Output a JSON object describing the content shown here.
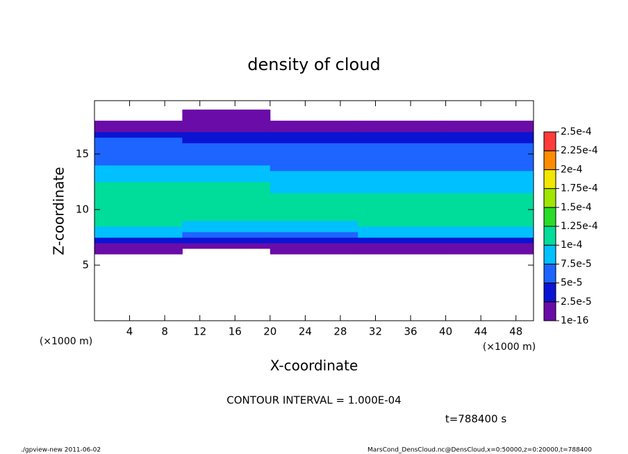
{
  "chart_data": {
    "type": "heatmap",
    "title": "density of cloud",
    "xlabel": "X-coordinate",
    "ylabel": "Z-coordinate",
    "x_unit_left": "(×1000 m)",
    "x_unit_right": "(×1000 m)",
    "contour_note": "CONTOUR INTERVAL = 1.000E-04",
    "time_note": "t=788400 s",
    "footer_left": "./gpview-new   2011-06-02",
    "footer_right": "MarsCond_DensCloud.nc@DensCloud,x=0:50000,z=0:20000,t=788400",
    "xlim": [
      0,
      50
    ],
    "ylim": [
      0,
      19.8
    ],
    "xticks": [
      4,
      8,
      12,
      16,
      20,
      24,
      28,
      32,
      36,
      40,
      44,
      48
    ],
    "yticks": [
      5,
      10,
      15
    ],
    "x_bins": [
      0,
      10,
      20,
      30,
      40,
      50
    ],
    "z_bins": [
      6,
      6.5,
      7,
      7.5,
      8,
      8.5,
      9,
      9.5,
      10,
      10.5,
      11,
      11.5,
      12,
      12.5,
      13,
      13.5,
      14,
      14.5,
      15,
      15.5,
      16,
      16.5,
      17,
      17.5,
      18,
      18.5,
      19
    ],
    "values": [
      [
        1e-05,
        2e-05,
        4e-05,
        8e-05,
        9e-05,
        0.000105,
        0.000115,
        0.00012,
        0.00012,
        0.000115,
        0.00011,
        0.000105,
        0.0001,
        9e-05,
        8e-05,
        7.5e-05,
        7e-05,
        6.5e-05,
        6e-05,
        5.5e-05,
        5e-05,
        3e-05,
        1e-05,
        1e-05,
        0,
        0
      ],
      [
        0,
        1e-05,
        3e-05,
        7e-05,
        8.5e-05,
        9.5e-05,
        0.000105,
        0.00011,
        0.000115,
        0.000115,
        0.00011,
        0.000105,
        0.000102,
        9e-05,
        8e-05,
        7.5e-05,
        7e-05,
        6.5e-05,
        6e-05,
        5.5e-05,
        4.5e-05,
        3e-05,
        2e-05,
        1e-05,
        1e-05,
        1e-05
      ],
      [
        1e-05,
        1e-05,
        3e-05,
        6.5e-05,
        8e-05,
        9e-05,
        0.000102,
        0.00011,
        0.00011,
        0.000105,
        0.000102,
        9.5e-05,
        9e-05,
        8e-05,
        7.5e-05,
        7e-05,
        6.5e-05,
        6e-05,
        5.5e-05,
        5e-05,
        4e-05,
        3e-05,
        1e-05,
        1e-05,
        0,
        0
      ],
      [
        1e-05,
        1e-05,
        4e-05,
        7.5e-05,
        9e-05,
        0.000102,
        0.000108,
        0.000112,
        0.00011,
        0.000105,
        0.000102,
        9e-05,
        8.5e-05,
        8e-05,
        7.5e-05,
        7e-05,
        6.5e-05,
        6e-05,
        5.5e-05,
        5e-05,
        4e-05,
        3e-05,
        1e-05,
        1e-05,
        0,
        0
      ],
      [
        1e-05,
        2e-05,
        4e-05,
        8e-05,
        9.5e-05,
        0.000105,
        0.00011,
        0.000112,
        0.00011,
        0.000105,
        0.000102,
        9e-05,
        8.5e-05,
        8e-05,
        7.5e-05,
        7e-05,
        6.5e-05,
        6e-05,
        5.5e-05,
        5e-05,
        4e-05,
        3e-05,
        1e-05,
        1e-05,
        0,
        0
      ]
    ],
    "levels": [
      {
        "value": 1e-16,
        "label": "1e-16"
      },
      {
        "value": 2.5e-05,
        "label": "2.5e-5"
      },
      {
        "value": 5e-05,
        "label": "5e-5"
      },
      {
        "value": 7.5e-05,
        "label": "7.5e-5"
      },
      {
        "value": 0.0001,
        "label": "1e-4"
      },
      {
        "value": 0.000125,
        "label": "1.25e-4"
      },
      {
        "value": 0.00015,
        "label": "1.5e-4"
      },
      {
        "value": 0.000175,
        "label": "1.75e-4"
      },
      {
        "value": 0.0002,
        "label": "2e-4"
      },
      {
        "value": 0.000225,
        "label": "2.25e-4"
      },
      {
        "value": 0.00025,
        "label": "2.5e-4"
      }
    ],
    "colors": [
      "#6a0ca8",
      "#0a14d2",
      "#1e64ff",
      "#00c0ff",
      "#00dc9a",
      "#28dc28",
      "#a0e600",
      "#f0e600",
      "#ff8c00",
      "#ff3c3c"
    ]
  }
}
